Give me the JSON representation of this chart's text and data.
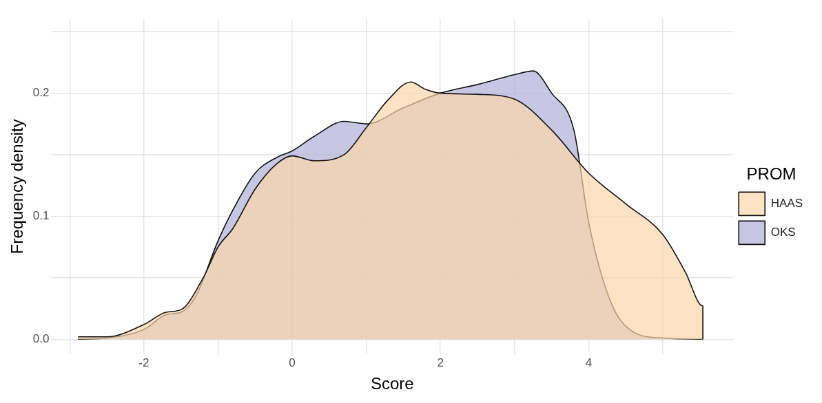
{
  "chart_data": {
    "type": "area",
    "xlabel": "Score",
    "ylabel": "Frequency density",
    "legend_title": "PROM",
    "legend": "right",
    "grid": true,
    "xlim": [
      -3.25,
      5.95
    ],
    "ylim": [
      -0.012,
      0.26
    ],
    "xticks": [
      {
        "value": -3,
        "label": null
      },
      -2,
      {
        "value": -1,
        "label": null
      },
      0,
      {
        "value": 1,
        "label": null
      },
      2,
      {
        "value": 3,
        "label": null
      },
      4,
      {
        "value": 5,
        "label": null
      }
    ],
    "yticks": [
      {
        "value": 0,
        "label": "0.0"
      },
      {
        "value": 0.05,
        "label": null
      },
      {
        "value": 0.1,
        "label": "0.1"
      },
      {
        "value": 0.15,
        "label": null
      },
      {
        "value": 0.2,
        "label": "0.2"
      },
      {
        "value": 0.25,
        "label": null
      }
    ],
    "series": [
      {
        "name": "HAAS",
        "color": "#fcd5aa",
        "x": [
          -2.89,
          -2.5,
          -2,
          -1.7,
          -1.5,
          -1.2,
          -1,
          -0.8,
          -0.5,
          -0.2,
          0,
          0.3,
          0.7,
          1,
          1.3,
          1.6,
          1.8,
          2,
          2.5,
          3,
          3.5,
          4,
          4.5,
          5,
          5.3,
          5.54,
          5.54
        ],
        "values": [
          0.002,
          0.002,
          0.012,
          0.022,
          0.024,
          0.05,
          0.075,
          0.09,
          0.122,
          0.143,
          0.149,
          0.145,
          0.15,
          0.172,
          0.195,
          0.209,
          0.203,
          0.2,
          0.199,
          0.195,
          0.17,
          0.135,
          0.11,
          0.085,
          0.055,
          0.027,
          0
        ]
      },
      {
        "name": "OKS",
        "color": "#aeaed6",
        "x": [
          -2.89,
          -2.5,
          -2,
          -1.7,
          -1.5,
          -1.3,
          -1,
          -0.8,
          -0.5,
          -0.2,
          0,
          0.3,
          0.7,
          1,
          1.5,
          2,
          2.5,
          3,
          3.25,
          3.5,
          3.8,
          4,
          4.3,
          4.6,
          5,
          5.54
        ],
        "values": [
          0,
          0.001,
          0.008,
          0.02,
          0.022,
          0.035,
          0.08,
          0.105,
          0.135,
          0.148,
          0.153,
          0.165,
          0.177,
          0.175,
          0.188,
          0.2,
          0.207,
          0.215,
          0.218,
          0.2,
          0.17,
          0.095,
          0.03,
          0.006,
          0.001,
          0
        ]
      }
    ]
  }
}
